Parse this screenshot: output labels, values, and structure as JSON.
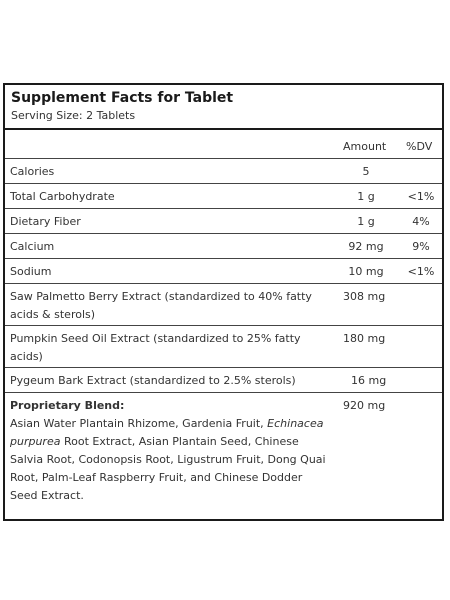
{
  "title": "Supplement Facts for Tablet",
  "serving_size": "Serving Size: 2 Tablets",
  "headers": {
    "amount": "Amount",
    "dv": "%DV"
  },
  "rows": [
    {
      "name": "Calories",
      "amount": "5",
      "dv": ""
    },
    {
      "name": "Total Carbohydrate",
      "amount": "1 g",
      "dv": "<1%"
    },
    {
      "name": "Dietary Fiber",
      "amount": "1 g",
      "dv": "4%"
    },
    {
      "name": "Calcium",
      "amount": "92 mg",
      "dv": "9%"
    },
    {
      "name": "Sodium",
      "amount": "10 mg",
      "dv": "<1%"
    },
    {
      "name_line1": "Saw Palmetto Berry Extract (standardized to 40% fatty",
      "name_line2": "acids & sterols)",
      "amount": "308 mg",
      "dv": ""
    },
    {
      "name_line1": "Pumpkin Seed Oil Extract (standardized to 25% fatty",
      "name_line2": "acids)",
      "amount": "180 mg",
      "dv": ""
    },
    {
      "name": "Pygeum Bark Extract (standardized to 2.5% sterols)",
      "amount": "16 mg",
      "dv": ""
    }
  ],
  "blend": {
    "label": "Proprietary Blend:",
    "amount": "920 mg",
    "l1": "Asian Water Plantain Rhizome, Gardenia Fruit, ",
    "l1_italic": "Echinacea",
    "l2_italic": "purpurea",
    "l2": " Root Extract, Asian Plantain Seed, Chinese",
    "l3": "Salvia Root, Codonopsis Root, Ligustrum Fruit, Dong Quai",
    "l4": "Root, Palm-Leaf Raspberry Fruit, and Chinese Dodder",
    "l5": "Seed Extract."
  }
}
